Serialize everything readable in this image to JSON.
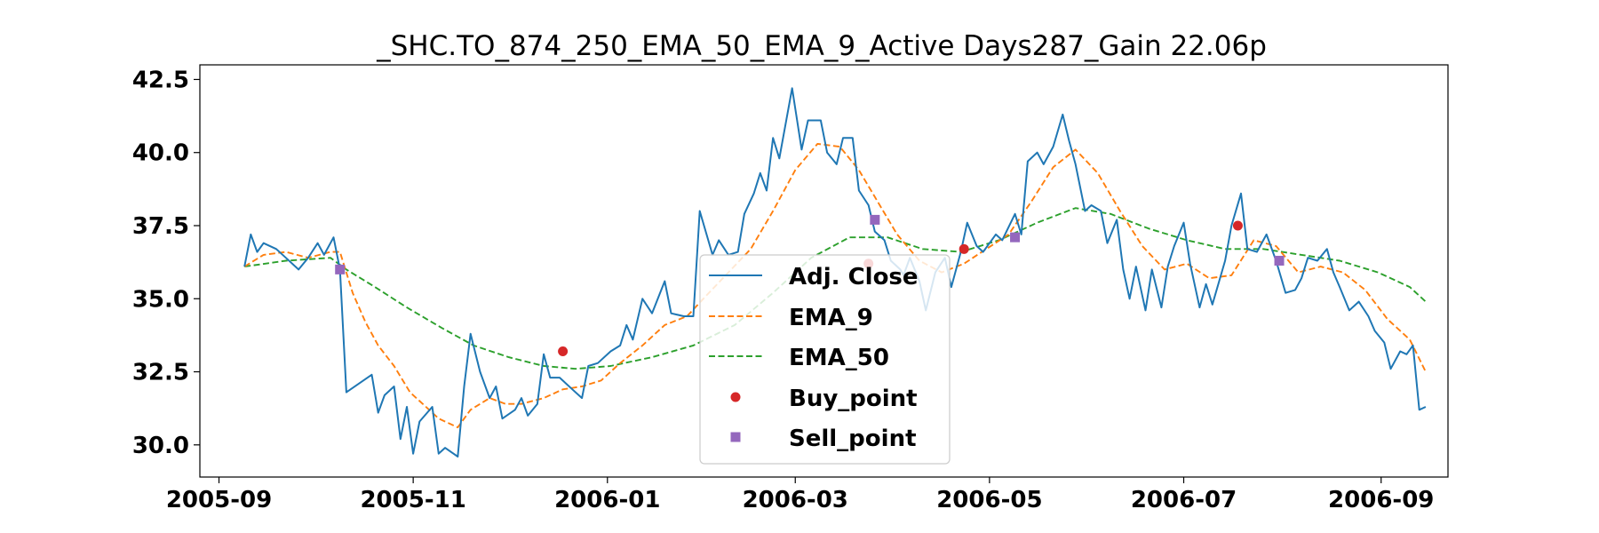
{
  "chart_data": {
    "type": "line",
    "title": "_SHC.TO_874_250_EMA_50_EMA_9_Active Days287_Gain  22.06p",
    "xlabel": "",
    "ylabel": "",
    "xlim": [
      "2005-08-26",
      "2006-09-22"
    ],
    "ylim": [
      28.9,
      43.0
    ],
    "x_ticks": [
      "2005-09",
      "2005-11",
      "2006-01",
      "2006-03",
      "2006-05",
      "2006-07",
      "2006-09"
    ],
    "y_ticks": [
      30.0,
      32.5,
      35.0,
      37.5,
      40.0,
      42.5
    ],
    "y_tick_labels": [
      "30.0",
      "32.5",
      "35.0",
      "37.5",
      "40.0",
      "42.5"
    ],
    "grid": false,
    "legend_position": "center-bottom",
    "colors": {
      "adj_close": "#1f77b4",
      "ema_9": "#ff7f0e",
      "ema_50": "#2ca02c",
      "buy": "#d62728",
      "sell": "#9467bd"
    },
    "series": [
      {
        "name": "Adj. Close",
        "style": "solid",
        "points": [
          [
            "2005-09-09",
            36.1
          ],
          [
            "2005-09-11",
            37.2
          ],
          [
            "2005-09-13",
            36.6
          ],
          [
            "2005-09-15",
            36.9
          ],
          [
            "2005-09-19",
            36.7
          ],
          [
            "2005-09-22",
            36.4
          ],
          [
            "2005-09-26",
            36.0
          ],
          [
            "2005-09-29",
            36.4
          ],
          [
            "2005-10-02",
            36.9
          ],
          [
            "2005-10-04",
            36.5
          ],
          [
            "2005-10-07",
            37.1
          ],
          [
            "2005-10-09",
            36.0
          ],
          [
            "2005-10-11",
            31.8
          ],
          [
            "2005-10-15",
            32.1
          ],
          [
            "2005-10-19",
            32.4
          ],
          [
            "2005-10-21",
            31.1
          ],
          [
            "2005-10-23",
            31.7
          ],
          [
            "2005-10-26",
            32.0
          ],
          [
            "2005-10-28",
            30.2
          ],
          [
            "2005-10-30",
            31.3
          ],
          [
            "2005-11-01",
            29.7
          ],
          [
            "2005-11-03",
            30.8
          ],
          [
            "2005-11-07",
            31.3
          ],
          [
            "2005-11-09",
            29.7
          ],
          [
            "2005-11-11",
            29.9
          ],
          [
            "2005-11-15",
            29.6
          ],
          [
            "2005-11-17",
            32.0
          ],
          [
            "2005-11-19",
            33.8
          ],
          [
            "2005-11-22",
            32.5
          ],
          [
            "2005-11-25",
            31.6
          ],
          [
            "2005-11-27",
            32.0
          ],
          [
            "2005-11-29",
            30.9
          ],
          [
            "2005-12-03",
            31.2
          ],
          [
            "2005-12-05",
            31.6
          ],
          [
            "2005-12-07",
            31.0
          ],
          [
            "2005-12-10",
            31.4
          ],
          [
            "2005-12-12",
            33.1
          ],
          [
            "2005-12-14",
            32.3
          ],
          [
            "2005-12-17",
            32.3
          ],
          [
            "2005-12-21",
            31.9
          ],
          [
            "2005-12-24",
            31.6
          ],
          [
            "2005-12-26",
            32.7
          ],
          [
            "2005-12-29",
            32.8
          ],
          [
            "2006-01-02",
            33.2
          ],
          [
            "2006-01-05",
            33.4
          ],
          [
            "2006-01-07",
            34.1
          ],
          [
            "2006-01-09",
            33.6
          ],
          [
            "2006-01-12",
            35.0
          ],
          [
            "2006-01-15",
            34.5
          ],
          [
            "2006-01-19",
            35.6
          ],
          [
            "2006-01-21",
            34.5
          ],
          [
            "2006-01-25",
            34.4
          ],
          [
            "2006-01-28",
            34.4
          ],
          [
            "2006-01-30",
            38.0
          ],
          [
            "2006-02-03",
            36.5
          ],
          [
            "2006-02-05",
            37.0
          ],
          [
            "2006-02-08",
            36.5
          ],
          [
            "2006-02-11",
            36.6
          ],
          [
            "2006-02-13",
            37.9
          ],
          [
            "2006-02-16",
            38.6
          ],
          [
            "2006-02-18",
            39.3
          ],
          [
            "2006-02-20",
            38.7
          ],
          [
            "2006-02-22",
            40.5
          ],
          [
            "2006-02-24",
            39.8
          ],
          [
            "2006-02-28",
            42.2
          ],
          [
            "2006-03-03",
            40.1
          ],
          [
            "2006-03-05",
            41.1
          ],
          [
            "2006-03-09",
            41.1
          ],
          [
            "2006-03-11",
            40.0
          ],
          [
            "2006-03-14",
            39.6
          ],
          [
            "2006-03-16",
            40.5
          ],
          [
            "2006-03-19",
            40.5
          ],
          [
            "2006-03-21",
            38.7
          ],
          [
            "2006-03-24",
            38.2
          ],
          [
            "2006-03-26",
            37.3
          ],
          [
            "2006-03-29",
            37.0
          ],
          [
            "2006-03-31",
            36.3
          ],
          [
            "2006-04-03",
            36.0
          ],
          [
            "2006-04-04",
            35.8
          ],
          [
            "2006-04-06",
            36.4
          ],
          [
            "2006-04-09",
            35.6
          ],
          [
            "2006-04-11",
            34.6
          ],
          [
            "2006-04-14",
            35.9
          ],
          [
            "2006-04-17",
            36.4
          ],
          [
            "2006-04-19",
            35.4
          ],
          [
            "2006-04-22",
            36.6
          ],
          [
            "2006-04-24",
            37.6
          ],
          [
            "2006-04-27",
            36.8
          ],
          [
            "2006-04-29",
            36.6
          ],
          [
            "2006-05-03",
            37.2
          ],
          [
            "2006-05-05",
            37.0
          ],
          [
            "2006-05-09",
            37.9
          ],
          [
            "2006-05-11",
            37.2
          ],
          [
            "2006-05-13",
            39.7
          ],
          [
            "2006-05-16",
            40.0
          ],
          [
            "2006-05-18",
            39.6
          ],
          [
            "2006-05-21",
            40.2
          ],
          [
            "2006-05-24",
            41.3
          ],
          [
            "2006-05-26",
            40.4
          ],
          [
            "2006-05-28",
            39.6
          ],
          [
            "2006-05-31",
            38.0
          ],
          [
            "2006-06-02",
            38.2
          ],
          [
            "2006-06-05",
            38.0
          ],
          [
            "2006-06-07",
            36.9
          ],
          [
            "2006-06-10",
            37.7
          ],
          [
            "2006-06-12",
            36.0
          ],
          [
            "2006-06-14",
            35.0
          ],
          [
            "2006-06-16",
            36.1
          ],
          [
            "2006-06-19",
            34.6
          ],
          [
            "2006-06-21",
            36.0
          ],
          [
            "2006-06-24",
            34.7
          ],
          [
            "2006-06-26",
            36.1
          ],
          [
            "2006-06-28",
            36.8
          ],
          [
            "2006-07-01",
            37.6
          ],
          [
            "2006-07-03",
            36.2
          ],
          [
            "2006-07-06",
            34.7
          ],
          [
            "2006-07-08",
            35.5
          ],
          [
            "2006-07-10",
            34.8
          ],
          [
            "2006-07-14",
            36.3
          ],
          [
            "2006-07-16",
            37.5
          ],
          [
            "2006-07-19",
            38.6
          ],
          [
            "2006-07-21",
            36.7
          ],
          [
            "2006-07-24",
            36.6
          ],
          [
            "2006-07-27",
            37.2
          ],
          [
            "2006-07-30",
            36.3
          ],
          [
            "2006-08-02",
            35.2
          ],
          [
            "2006-08-05",
            35.3
          ],
          [
            "2006-08-07",
            35.7
          ],
          [
            "2006-08-09",
            36.4
          ],
          [
            "2006-08-12",
            36.3
          ],
          [
            "2006-08-15",
            36.7
          ],
          [
            "2006-08-17",
            35.9
          ],
          [
            "2006-08-19",
            35.4
          ],
          [
            "2006-08-22",
            34.6
          ],
          [
            "2006-08-25",
            34.9
          ],
          [
            "2006-08-28",
            34.4
          ],
          [
            "2006-08-30",
            33.9
          ],
          [
            "2006-09-02",
            33.5
          ],
          [
            "2006-09-04",
            32.6
          ],
          [
            "2006-09-07",
            33.2
          ],
          [
            "2006-09-09",
            33.1
          ],
          [
            "2006-09-11",
            33.4
          ],
          [
            "2006-09-13",
            31.2
          ],
          [
            "2006-09-15",
            31.3
          ]
        ]
      },
      {
        "name": "EMA_9",
        "style": "dashed",
        "points": [
          [
            "2005-09-09",
            36.1
          ],
          [
            "2005-09-15",
            36.5
          ],
          [
            "2005-09-22",
            36.6
          ],
          [
            "2005-09-29",
            36.4
          ],
          [
            "2005-10-06",
            36.6
          ],
          [
            "2005-10-09",
            36.6
          ],
          [
            "2005-10-13",
            35.2
          ],
          [
            "2005-10-17",
            34.2
          ],
          [
            "2005-10-21",
            33.4
          ],
          [
            "2005-10-26",
            32.7
          ],
          [
            "2005-10-31",
            31.8
          ],
          [
            "2005-11-04",
            31.4
          ],
          [
            "2005-11-09",
            30.9
          ],
          [
            "2005-11-15",
            30.6
          ],
          [
            "2005-11-19",
            31.2
          ],
          [
            "2005-11-25",
            31.6
          ],
          [
            "2005-11-30",
            31.4
          ],
          [
            "2005-12-05",
            31.4
          ],
          [
            "2005-12-12",
            31.6
          ],
          [
            "2005-12-18",
            31.9
          ],
          [
            "2005-12-24",
            32.0
          ],
          [
            "2005-12-30",
            32.2
          ],
          [
            "2006-01-05",
            32.8
          ],
          [
            "2006-01-12",
            33.4
          ],
          [
            "2006-01-19",
            34.1
          ],
          [
            "2006-01-26",
            34.4
          ],
          [
            "2006-02-01",
            35.1
          ],
          [
            "2006-02-08",
            35.9
          ],
          [
            "2006-02-15",
            36.7
          ],
          [
            "2006-02-22",
            38.0
          ],
          [
            "2006-03-01",
            39.4
          ],
          [
            "2006-03-08",
            40.3
          ],
          [
            "2006-03-15",
            40.2
          ],
          [
            "2006-03-21",
            39.4
          ],
          [
            "2006-03-27",
            38.3
          ],
          [
            "2006-04-02",
            37.2
          ],
          [
            "2006-04-09",
            36.3
          ],
          [
            "2006-04-16",
            35.9
          ],
          [
            "2006-04-23",
            36.2
          ],
          [
            "2006-04-30",
            36.7
          ],
          [
            "2006-05-07",
            37.2
          ],
          [
            "2006-05-14",
            38.3
          ],
          [
            "2006-05-21",
            39.5
          ],
          [
            "2006-05-28",
            40.1
          ],
          [
            "2006-06-04",
            39.3
          ],
          [
            "2006-06-11",
            38.0
          ],
          [
            "2006-06-18",
            36.8
          ],
          [
            "2006-06-25",
            36.0
          ],
          [
            "2006-07-02",
            36.2
          ],
          [
            "2006-07-09",
            35.7
          ],
          [
            "2006-07-16",
            35.8
          ],
          [
            "2006-07-23",
            37.0
          ],
          [
            "2006-07-30",
            36.8
          ],
          [
            "2006-08-06",
            35.9
          ],
          [
            "2006-08-13",
            36.1
          ],
          [
            "2006-08-20",
            35.9
          ],
          [
            "2006-08-27",
            35.3
          ],
          [
            "2006-09-03",
            34.3
          ],
          [
            "2006-09-10",
            33.6
          ],
          [
            "2006-09-15",
            32.5
          ]
        ]
      },
      {
        "name": "EMA_50",
        "style": "dashed",
        "points": [
          [
            "2005-09-09",
            36.1
          ],
          [
            "2005-09-22",
            36.3
          ],
          [
            "2005-10-06",
            36.4
          ],
          [
            "2005-10-11",
            36.0
          ],
          [
            "2005-10-20",
            35.4
          ],
          [
            "2005-10-30",
            34.7
          ],
          [
            "2005-11-10",
            34.0
          ],
          [
            "2005-11-20",
            33.4
          ],
          [
            "2005-12-01",
            33.0
          ],
          [
            "2005-12-12",
            32.7
          ],
          [
            "2005-12-22",
            32.6
          ],
          [
            "2006-01-02",
            32.7
          ],
          [
            "2006-01-15",
            33.0
          ],
          [
            "2006-01-28",
            33.4
          ],
          [
            "2006-02-10",
            34.1
          ],
          [
            "2006-02-22",
            35.2
          ],
          [
            "2006-03-06",
            36.4
          ],
          [
            "2006-03-18",
            37.1
          ],
          [
            "2006-03-30",
            37.1
          ],
          [
            "2006-04-10",
            36.7
          ],
          [
            "2006-04-22",
            36.6
          ],
          [
            "2006-05-04",
            37.0
          ],
          [
            "2006-05-16",
            37.6
          ],
          [
            "2006-05-28",
            38.1
          ],
          [
            "2006-06-08",
            37.9
          ],
          [
            "2006-06-20",
            37.4
          ],
          [
            "2006-07-02",
            37.0
          ],
          [
            "2006-07-14",
            36.7
          ],
          [
            "2006-07-26",
            36.7
          ],
          [
            "2006-08-07",
            36.5
          ],
          [
            "2006-08-19",
            36.3
          ],
          [
            "2006-08-31",
            35.9
          ],
          [
            "2006-09-10",
            35.4
          ],
          [
            "2006-09-15",
            34.9
          ]
        ]
      }
    ],
    "buy_points": [
      [
        "2005-12-18",
        33.2
      ],
      [
        "2006-03-24",
        36.2
      ],
      [
        "2006-04-23",
        36.7
      ],
      [
        "2006-07-18",
        37.5
      ]
    ],
    "sell_points": [
      [
        "2005-10-09",
        36.0
      ],
      [
        "2006-03-26",
        37.7
      ],
      [
        "2006-05-09",
        37.1
      ],
      [
        "2006-07-31",
        36.3
      ]
    ],
    "legend": [
      {
        "key": "adj_close",
        "label": "Adj. Close",
        "marker": "line-solid"
      },
      {
        "key": "ema_9",
        "label": "EMA_9",
        "marker": "line-dashed"
      },
      {
        "key": "ema_50",
        "label": "EMA_50",
        "marker": "line-dashed"
      },
      {
        "key": "buy",
        "label": "Buy_point",
        "marker": "circle"
      },
      {
        "key": "sell",
        "label": "Sell_point",
        "marker": "square"
      }
    ]
  }
}
